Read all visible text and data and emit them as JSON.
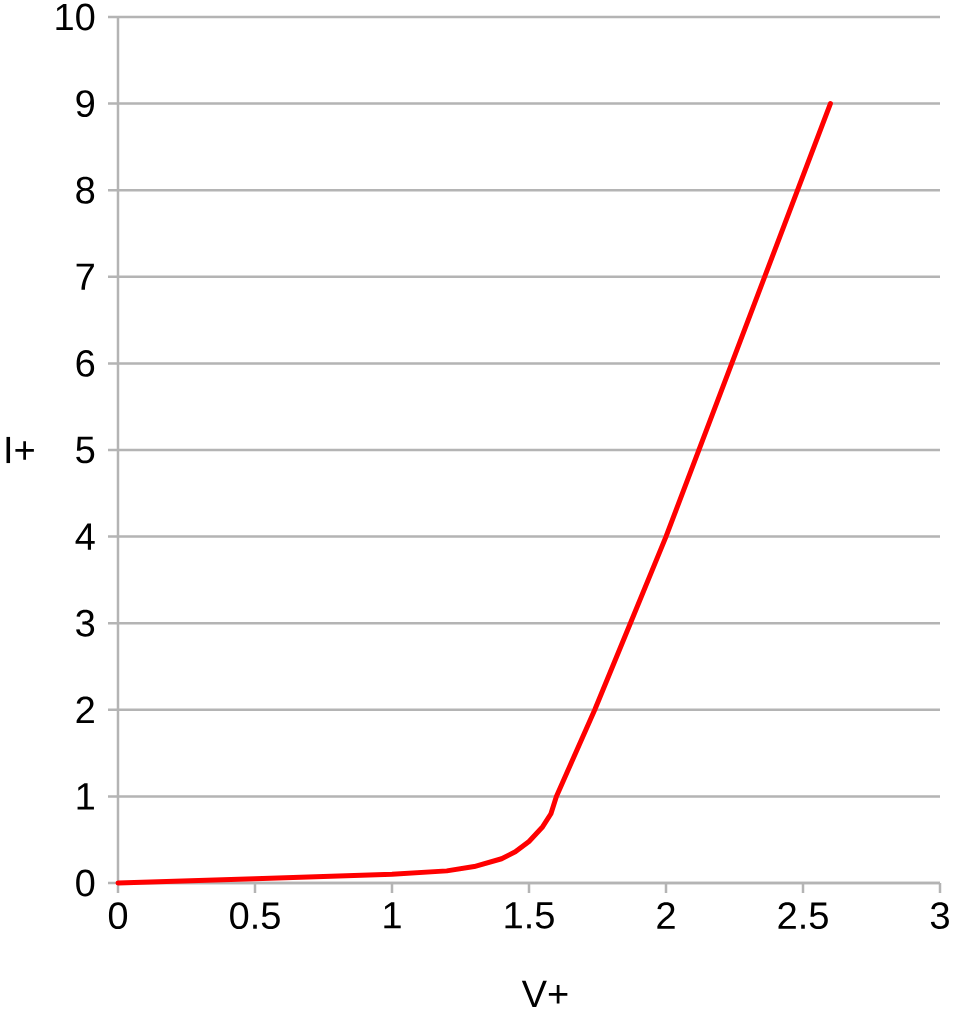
{
  "chart_data": {
    "type": "line",
    "xlabel": "V+",
    "ylabel": "I+",
    "x": [
      0,
      0.5,
      1,
      1.1,
      1.2,
      1.3,
      1.4,
      1.45,
      1.5,
      1.55,
      1.58,
      1.6,
      1.74,
      1.87,
      2.0,
      2.12,
      2.24,
      2.36,
      2.48,
      2.6
    ],
    "values": [
      0,
      0.05,
      0.1,
      0.12,
      0.14,
      0.19,
      0.28,
      0.36,
      0.48,
      0.65,
      0.8,
      1.0,
      2,
      3,
      4,
      5,
      6,
      7,
      8,
      9
    ],
    "color": "#ff0000",
    "line_style": "solid",
    "xlim": [
      0,
      3
    ],
    "ylim": [
      0,
      10
    ],
    "xticks": [
      0,
      0.5,
      1,
      1.5,
      2,
      2.5,
      3
    ],
    "yticks": [
      0,
      1,
      2,
      3,
      4,
      5,
      6,
      7,
      8,
      9,
      10
    ],
    "grid": "y"
  }
}
